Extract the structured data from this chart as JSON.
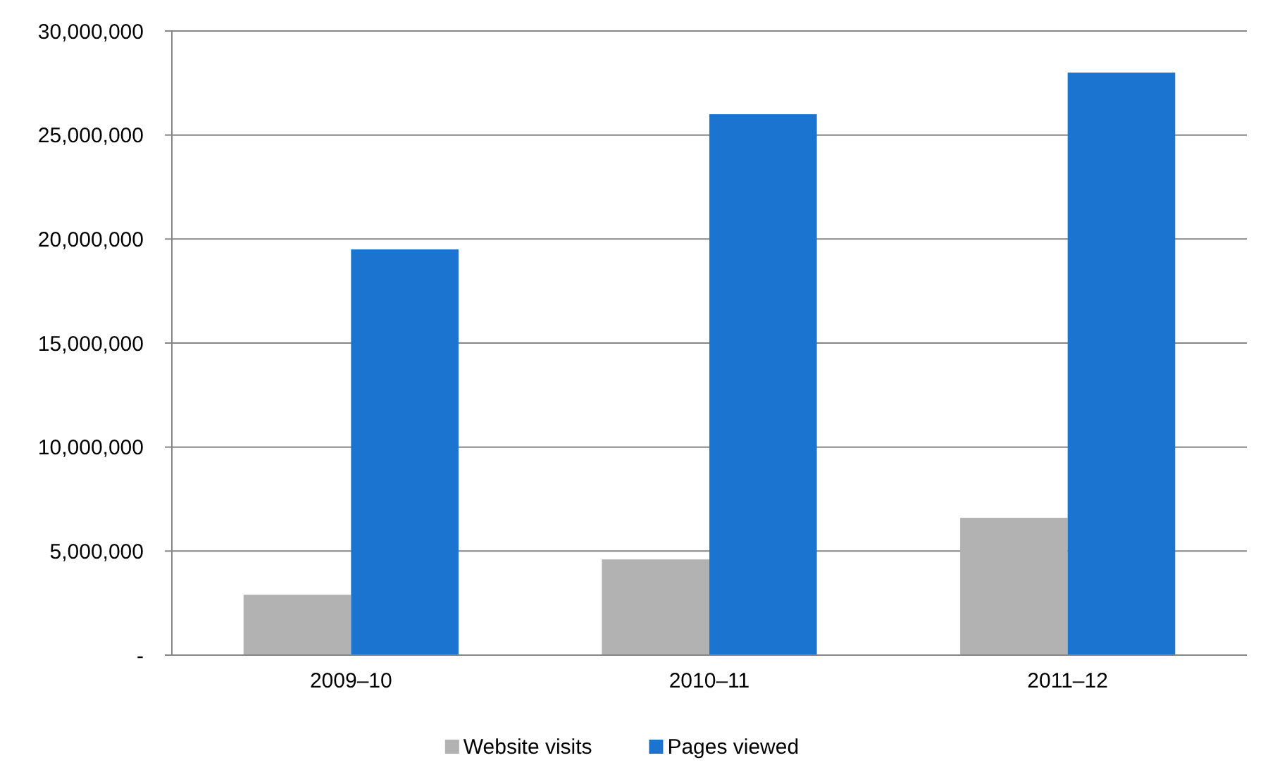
{
  "chart_data": {
    "type": "bar",
    "categories": [
      "2009–10",
      "2010–11",
      "2011–12"
    ],
    "series": [
      {
        "name": "Website visits",
        "color": "#b2b2b2",
        "values": [
          2900000,
          4600000,
          6600000
        ]
      },
      {
        "name": "Pages viewed",
        "color": "#1b75d0",
        "values": [
          19500000,
          26000000,
          28000000
        ]
      }
    ],
    "ylim": [
      0,
      30000000
    ],
    "yticks": [
      {
        "value": 0,
        "label": "-"
      },
      {
        "value": 5000000,
        "label": "5,000,000"
      },
      {
        "value": 10000000,
        "label": "10,000,000"
      },
      {
        "value": 15000000,
        "label": "15,000,000"
      },
      {
        "value": 20000000,
        "label": "20,000,000"
      },
      {
        "value": 25000000,
        "label": "25,000,000"
      },
      {
        "value": 30000000,
        "label": "30,000,000"
      }
    ],
    "grid": "y",
    "legend": "bottom"
  }
}
